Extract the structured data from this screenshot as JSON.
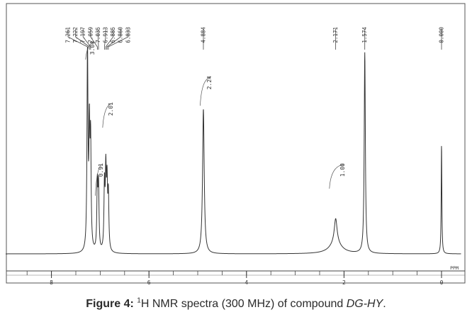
{
  "chart_data": {
    "type": "line",
    "title": "",
    "xlabel": "PPM",
    "ylabel": "",
    "xlim": [
      9.0,
      -0.4
    ],
    "x_ticks": [
      8,
      6,
      4,
      2,
      0
    ],
    "x_tick_labels": [
      "8",
      "6",
      "4",
      "2",
      "0"
    ],
    "grid": false,
    "series": [
      {
        "peaks": [
          {
            "ppm": 7.261,
            "height": 0.97,
            "width": 0.012
          },
          {
            "ppm": 7.222,
            "height": 0.55,
            "width": 0.012
          },
          {
            "ppm": 7.197,
            "height": 0.5,
            "width": 0.012
          },
          {
            "ppm": 7.059,
            "height": 0.31,
            "width": 0.012
          },
          {
            "ppm": 7.035,
            "height": 0.3,
            "width": 0.012
          },
          {
            "ppm": 6.913,
            "height": 0.31,
            "width": 0.012
          },
          {
            "ppm": 6.885,
            "height": 0.36,
            "width": 0.012
          },
          {
            "ppm": 6.86,
            "height": 0.3,
            "width": 0.012
          },
          {
            "ppm": 6.833,
            "height": 0.26,
            "width": 0.012
          },
          {
            "ppm": 4.884,
            "height": 0.7,
            "width": 0.02
          },
          {
            "ppm": 2.171,
            "height": 0.12,
            "width": 0.035
          },
          {
            "ppm": 2.171,
            "height": 0.05,
            "width": 0.15
          },
          {
            "ppm": 1.574,
            "height": 0.97,
            "width": 0.014
          },
          {
            "ppm": 0.0,
            "height": 0.53,
            "width": 0.008
          }
        ]
      }
    ],
    "peak_labels": [
      "7.261",
      "7.222",
      "7.197",
      "7.059",
      "7.035",
      "6.913",
      "6.885",
      "6.860",
      "6.833",
      "4.884",
      "2.171",
      "1.574",
      "0.000"
    ],
    "integrations": [
      {
        "label": "3.04",
        "from": 7.3,
        "to": 7.14,
        "value": 3.04
      },
      {
        "label": "0.91",
        "from": 7.1,
        "to": 7.0,
        "value": 0.91
      },
      {
        "label": "2.01",
        "from": 6.95,
        "to": 6.8,
        "value": 2.01
      },
      {
        "label": "2.24",
        "from": 4.95,
        "to": 4.82,
        "value": 2.24
      },
      {
        "label": "1.00",
        "from": 2.3,
        "to": 2.05,
        "value": 1.0
      }
    ]
  },
  "caption": {
    "prefix": "Figure 4:",
    "superscript": "1",
    "text": "H NMR spectra (300 MHz) of compound ",
    "compound": "DG-HY",
    "suffix": "."
  }
}
